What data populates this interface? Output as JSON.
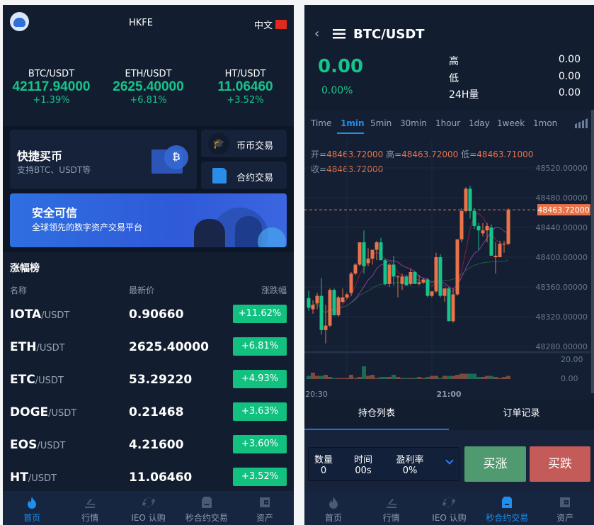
{
  "home": {
    "app_title": "HKFE",
    "language": "中文",
    "tickers": [
      {
        "pair": "BTC/USDT",
        "price": "42117.94000",
        "change": "+1.39%"
      },
      {
        "pair": "ETH/USDT",
        "price": "2625.40000",
        "change": "+6.81%"
      },
      {
        "pair": "HT/USDT",
        "price": "11.06460",
        "change": "+3.52%"
      }
    ],
    "quick_buy": {
      "title": "快捷买币",
      "subtitle": "支持BTC、USDT等"
    },
    "spot_trade": "币币交易",
    "contract_trade": "合约交易",
    "banner": {
      "title": "安全可信",
      "subtitle": "全球领先的数字资产交易平台"
    },
    "ranking": {
      "title": "涨幅榜",
      "col_name": "名称",
      "col_price": "最新价",
      "col_change": "涨跌幅",
      "rows": [
        {
          "base": "IOTA",
          "quote": "/USDT",
          "price": "0.90660",
          "change": "+11.62%"
        },
        {
          "base": "ETH",
          "quote": "/USDT",
          "price": "2625.40000",
          "change": "+6.81%"
        },
        {
          "base": "ETC",
          "quote": "/USDT",
          "price": "53.29220",
          "change": "+4.93%"
        },
        {
          "base": "DOGE",
          "quote": "/USDT",
          "price": "0.21468",
          "change": "+3.63%"
        },
        {
          "base": "EOS",
          "quote": "/USDT",
          "price": "4.21600",
          "change": "+3.60%"
        },
        {
          "base": "HT",
          "quote": "/USDT",
          "price": "11.06460",
          "change": "+3.52%"
        }
      ]
    }
  },
  "nav": [
    {
      "label": "首页",
      "icon": "flame-icon"
    },
    {
      "label": "行情",
      "icon": "market-icon"
    },
    {
      "label": "IEO 认购",
      "icon": "refresh-icon"
    },
    {
      "label": "秒合约交易",
      "icon": "document-icon"
    },
    {
      "label": "资产",
      "icon": "wallet-icon"
    }
  ],
  "trade": {
    "pair": "BTC/USDT",
    "price": "0.00",
    "change": "0.00%",
    "stats": [
      {
        "label": "高",
        "value": "0.00"
      },
      {
        "label": "低",
        "value": "0.00"
      },
      {
        "label": "24H量",
        "value": "0.00"
      }
    ],
    "timeframes": [
      "Time",
      "1min",
      "5min",
      "30min",
      "1hour",
      "1day",
      "1week",
      "1mon"
    ],
    "active_timeframe": "1min",
    "ohlc": {
      "open_label": "开=",
      "open": "48463.72000",
      "high_label": "高=",
      "high": "48463.72000",
      "low_label": "低=",
      "low": "48463.71000",
      "close_label": "收=",
      "close": "48463.72000"
    },
    "tabs": [
      "持仓列表",
      "订单记录"
    ],
    "form": {
      "qty_label": "数量",
      "qty": "0",
      "time_label": "时间",
      "time": "00s",
      "rate_label": "盈利率",
      "rate": "0%"
    },
    "buy_up": "买涨",
    "buy_down": "买跌"
  },
  "chart_data": {
    "type": "candlestick",
    "price_ticks": [
      "48520.00000",
      "48480.00000",
      "48440.00000",
      "48400.00000",
      "48360.00000",
      "48320.00000",
      "48280.00000"
    ],
    "volume_ticks": [
      "20.00",
      "0.00"
    ],
    "x_ticks": [
      "20:30",
      "21:00"
    ],
    "last_price": "48463.72000",
    "ylim": [
      48260,
      48530
    ],
    "colors": {
      "up": "#e9734a",
      "down": "#17c38a"
    },
    "candles": [
      [
        48345,
        48355,
        48328,
        48332
      ],
      [
        48330,
        48342,
        48324,
        48336
      ],
      [
        48338,
        48352,
        48330,
        48348
      ],
      [
        48348,
        48372,
        48296,
        48302
      ],
      [
        48302,
        48336,
        48284,
        48308
      ],
      [
        48308,
        48358,
        48306,
        48356
      ],
      [
        48356,
        48358,
        48322,
        48322
      ],
      [
        48322,
        48348,
        48320,
        48346
      ],
      [
        48340,
        48358,
        48338,
        48346
      ],
      [
        48346,
        48352,
        48344,
        48350
      ],
      [
        48352,
        48380,
        48348,
        48378
      ],
      [
        48378,
        48392,
        48376,
        48390
      ],
      [
        48390,
        48420,
        48388,
        48420
      ],
      [
        48420,
        48436,
        48378,
        48388
      ],
      [
        48392,
        48412,
        48388,
        48398
      ],
      [
        48398,
        48410,
        48390,
        48410
      ],
      [
        48410,
        48422,
        48396,
        48420
      ],
      [
        48420,
        48426,
        48396,
        48396
      ],
      [
        48396,
        48398,
        48362,
        48364
      ],
      [
        48364,
        48392,
        48360,
        48390
      ],
      [
        48390,
        48402,
        48362,
        48374
      ],
      [
        48374,
        48376,
        48346,
        48374
      ],
      [
        48364,
        48378,
        48356,
        48374
      ],
      [
        48374,
        48376,
        48362,
        48362
      ],
      [
        48364,
        48384,
        48362,
        48380
      ],
      [
        48380,
        48382,
        48364,
        48364
      ],
      [
        48364,
        48376,
        48362,
        48366
      ],
      [
        48366,
        48372,
        48364,
        48370
      ],
      [
        48370,
        48372,
        48346,
        48348
      ],
      [
        48348,
        48354,
        48346,
        48354
      ],
      [
        48354,
        48406,
        48352,
        48400
      ],
      [
        48400,
        48404,
        48346,
        48348
      ],
      [
        48348,
        48358,
        48340,
        48358
      ],
      [
        48358,
        48360,
        48314,
        48314
      ],
      [
        48314,
        48358,
        48312,
        48350
      ],
      [
        48350,
        48424,
        48348,
        48424
      ],
      [
        48424,
        48466,
        48420,
        48462
      ],
      [
        48462,
        48494,
        48460,
        48492
      ],
      [
        48492,
        48496,
        48452,
        48462
      ],
      [
        48462,
        48466,
        48438,
        48442
      ],
      [
        48442,
        48446,
        48410,
        48436
      ],
      [
        48432,
        48446,
        48428,
        48436
      ],
      [
        48436,
        48446,
        48420,
        48442
      ],
      [
        48440,
        48444,
        48402,
        48402
      ],
      [
        48400,
        48420,
        48378,
        48402
      ],
      [
        48400,
        48422,
        48400,
        48418
      ],
      [
        48418,
        48422,
        48406,
        48418
      ],
      [
        48418,
        48466,
        48416,
        48464
      ]
    ],
    "volumes": [
      3,
      6,
      3,
      3,
      4,
      2,
      1,
      1,
      1,
      1,
      4,
      1,
      2,
      12,
      3,
      4,
      1,
      2,
      2,
      2,
      4,
      2,
      1,
      1,
      1,
      1,
      2,
      1,
      2,
      3,
      3,
      1,
      3,
      3,
      3,
      4,
      5,
      5,
      5,
      5,
      2,
      2,
      3,
      3,
      2,
      1,
      2,
      3
    ]
  }
}
